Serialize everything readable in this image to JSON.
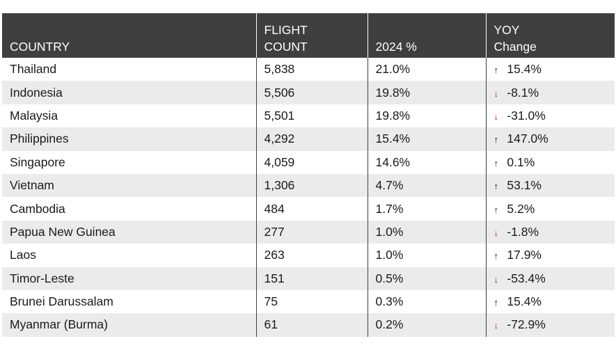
{
  "chart_data": {
    "type": "table",
    "columns": [
      "COUNTRY",
      "FLIGHT COUNT",
      "2024 %",
      "YOY Change"
    ],
    "header_lines": [
      [
        "COUNTRY"
      ],
      [
        "FLIGHT",
        "COUNT"
      ],
      [
        "2024 %"
      ],
      [
        "YOY",
        "Change"
      ]
    ],
    "rows": [
      {
        "country": "Thailand",
        "flights": "5,838",
        "share": "21.0%",
        "yoy": "15.4%",
        "dir": "up"
      },
      {
        "country": "Indonesia",
        "flights": "5,506",
        "share": "19.8%",
        "yoy": "-8.1%",
        "dir": "down"
      },
      {
        "country": "Malaysia",
        "flights": "5,501",
        "share": "19.8%",
        "yoy": "-31.0%",
        "dir": "down"
      },
      {
        "country": "Philippines",
        "flights": "4,292",
        "share": "15.4%",
        "yoy": "147.0%",
        "dir": "up"
      },
      {
        "country": "Singapore",
        "flights": "4,059",
        "share": "14.6%",
        "yoy": "0.1%",
        "dir": "up"
      },
      {
        "country": "Vietnam",
        "flights": "1,306",
        "share": "4.7%",
        "yoy": "53.1%",
        "dir": "up"
      },
      {
        "country": "Cambodia",
        "flights": "484",
        "share": "1.7%",
        "yoy": "5.2%",
        "dir": "up"
      },
      {
        "country": "Papua New Guinea",
        "flights": "277",
        "share": "1.0%",
        "yoy": "-1.8%",
        "dir": "down"
      },
      {
        "country": "Laos",
        "flights": "263",
        "share": "1.0%",
        "yoy": "17.9%",
        "dir": "up"
      },
      {
        "country": "Timor-Leste",
        "flights": "151",
        "share": "0.5%",
        "yoy": "-53.4%",
        "dir": "down"
      },
      {
        "country": "Brunei Darussalam",
        "flights": "75",
        "share": "0.3%",
        "yoy": "15.4%",
        "dir": "up"
      },
      {
        "country": "Myanmar (Burma)",
        "flights": "61",
        "share": "0.2%",
        "yoy": "-72.9%",
        "dir": "down"
      }
    ]
  },
  "colors": {
    "header_bg": "#3f3f3f",
    "stripe": "#ebebeb",
    "up_arrow": "#111111",
    "down_arrow": "#c8102e"
  },
  "icons": {
    "up": "up-arrow-icon",
    "down": "down-arrow-icon"
  }
}
